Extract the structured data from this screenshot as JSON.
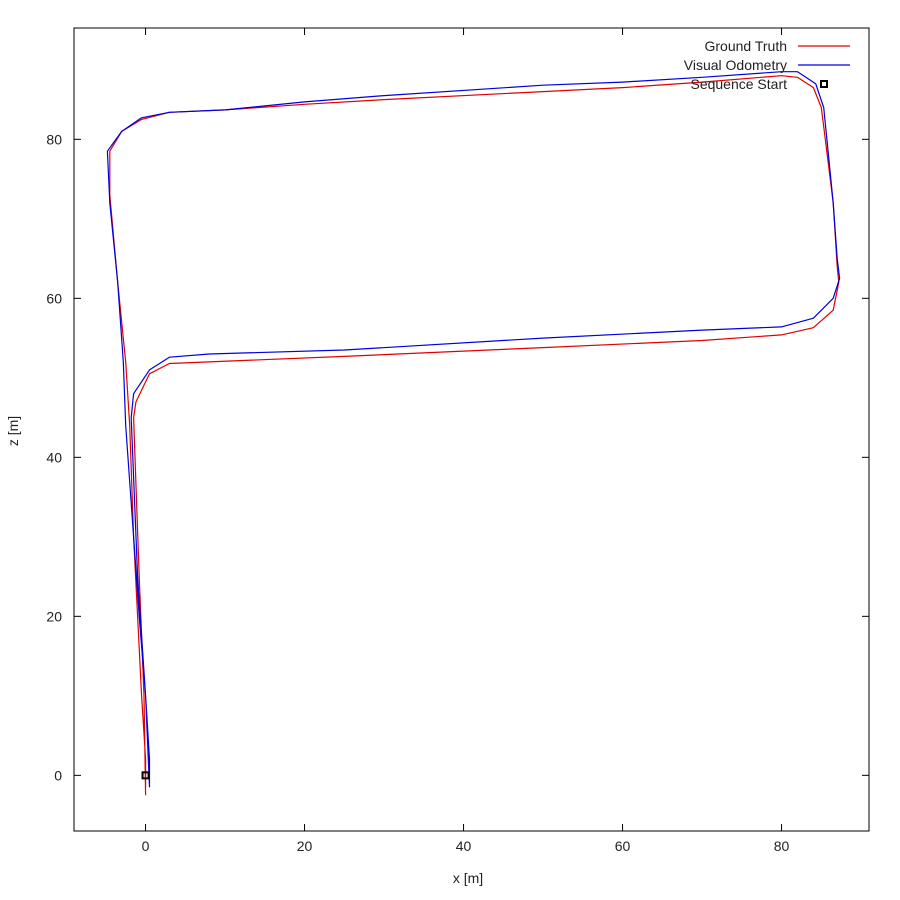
{
  "chart_data": {
    "type": "line",
    "xlabel": "x [m]",
    "ylabel": "z [m]",
    "xlim": [
      -9,
      91
    ],
    "ylim": [
      -7,
      94
    ],
    "xticks": [
      0,
      20,
      40,
      60,
      80
    ],
    "yticks": [
      0,
      20,
      40,
      60,
      80
    ],
    "grid": false,
    "legend_placement": "top-right",
    "series": [
      {
        "name": "Ground Truth",
        "color": "#e00000",
        "points": [
          [
            0,
            -2.5
          ],
          [
            -0.2,
            10
          ],
          [
            -0.8,
            25
          ],
          [
            -1.5,
            45
          ],
          [
            -1.2,
            47
          ],
          [
            0.5,
            50.5
          ],
          [
            3,
            51.8
          ],
          [
            8,
            52
          ],
          [
            25,
            52.7
          ],
          [
            50,
            53.8
          ],
          [
            70,
            54.7
          ],
          [
            80,
            55.4
          ],
          [
            84,
            56.3
          ],
          [
            86.5,
            58.5
          ],
          [
            87.2,
            62
          ],
          [
            87,
            64
          ],
          [
            86.5,
            72
          ],
          [
            85.5,
            80
          ],
          [
            85,
            84
          ],
          [
            84,
            86.5
          ],
          [
            82,
            87.8
          ],
          [
            80,
            88
          ],
          [
            70,
            87.2
          ],
          [
            60,
            86.5
          ],
          [
            50,
            86
          ],
          [
            30,
            85
          ],
          [
            20,
            84.4
          ],
          [
            10,
            83.7
          ],
          [
            3,
            83.4
          ],
          [
            -0.5,
            82.5
          ],
          [
            -3,
            81
          ],
          [
            -4.5,
            78.5
          ],
          [
            -4.5,
            73
          ],
          [
            -3.5,
            62
          ],
          [
            -2.5,
            52
          ],
          [
            -2,
            44
          ],
          [
            -1.5,
            30
          ],
          [
            -1,
            20
          ],
          [
            -0.5,
            10
          ],
          [
            0,
            2
          ],
          [
            0,
            -1.5
          ]
        ]
      },
      {
        "name": "Visual Odometry",
        "color": "#0000e0",
        "points": [
          [
            0.5,
            -1.5
          ],
          [
            0,
            10
          ],
          [
            -1,
            25
          ],
          [
            -1.8,
            45
          ],
          [
            -1.5,
            48
          ],
          [
            0.5,
            51
          ],
          [
            3,
            52.6
          ],
          [
            8,
            53
          ],
          [
            25,
            53.5
          ],
          [
            50,
            55
          ],
          [
            70,
            56
          ],
          [
            80,
            56.4
          ],
          [
            84,
            57.5
          ],
          [
            86.5,
            60
          ],
          [
            87.3,
            62.5
          ],
          [
            87,
            65
          ],
          [
            86.5,
            72
          ],
          [
            85.7,
            80
          ],
          [
            85.3,
            84
          ],
          [
            84.3,
            87
          ],
          [
            82,
            88.5
          ],
          [
            80,
            88.5
          ],
          [
            70,
            87.8
          ],
          [
            60,
            87.2
          ],
          [
            50,
            86.8
          ],
          [
            30,
            85.5
          ],
          [
            20,
            84.7
          ],
          [
            10,
            83.7
          ],
          [
            3,
            83.4
          ],
          [
            -0.5,
            82.7
          ],
          [
            -3,
            81
          ],
          [
            -4.8,
            78.5
          ],
          [
            -4.5,
            72
          ],
          [
            -3.5,
            62
          ],
          [
            -2.8,
            52
          ],
          [
            -2.5,
            44
          ],
          [
            -1.5,
            30
          ],
          [
            -0.8,
            20
          ],
          [
            0,
            10
          ],
          [
            0.5,
            2
          ],
          [
            0.5,
            -1.5
          ]
        ]
      },
      {
        "name": "Sequence Start",
        "color": "#000000",
        "marker": "square",
        "points": [
          [
            0,
            0
          ]
        ]
      }
    ]
  }
}
